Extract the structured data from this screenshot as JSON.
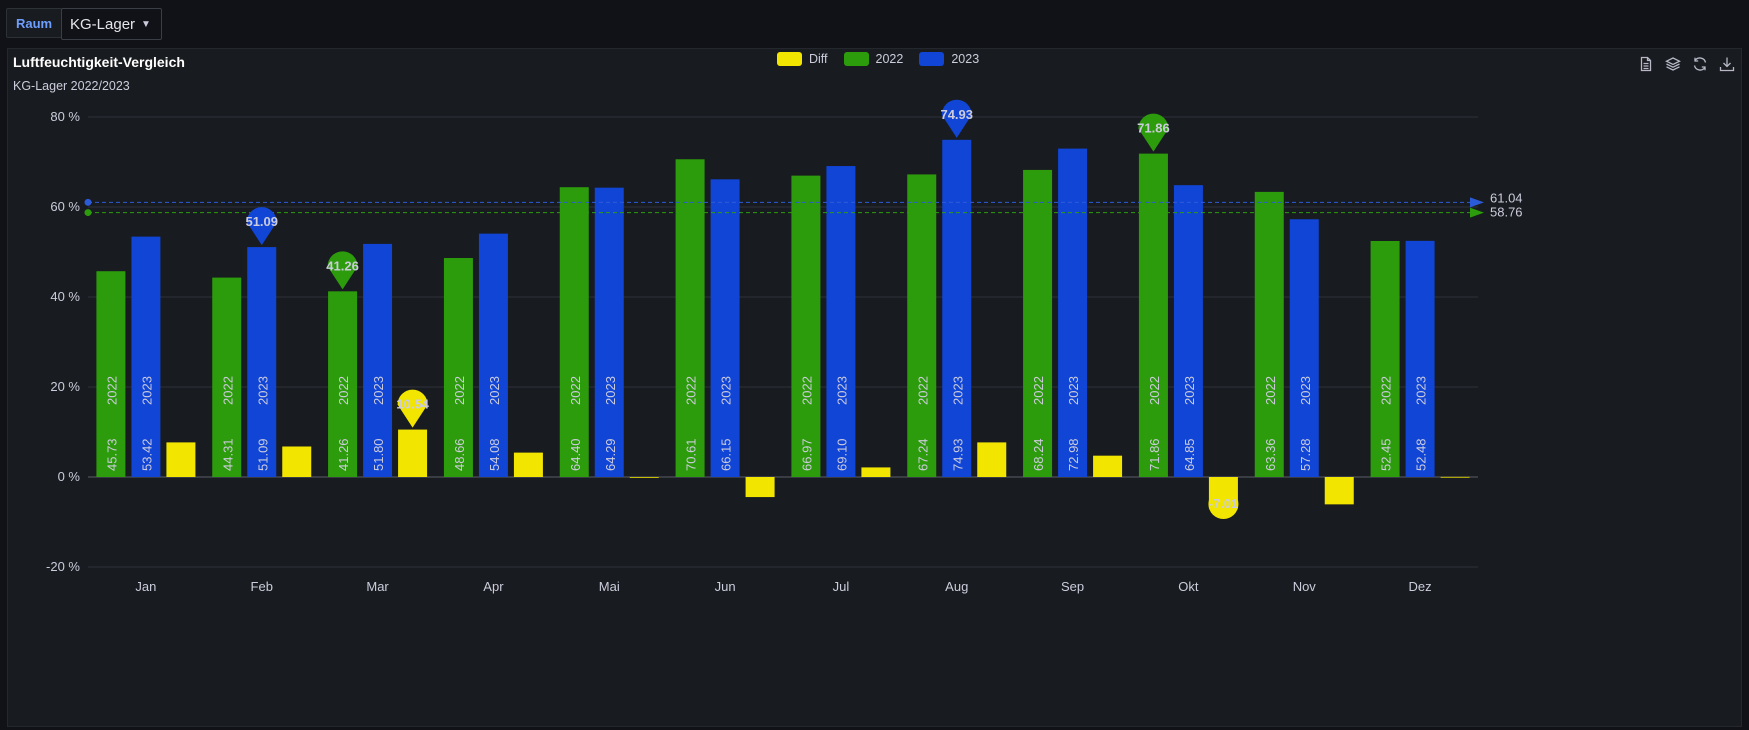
{
  "variable": {
    "label": "Raum",
    "value": "KG-Lager"
  },
  "panel": {
    "title": "Luftfeuchtigkeit-Vergleich",
    "subtitle": "KG-Lager 2022/2023"
  },
  "toolbar": {
    "icons": [
      "document-icon",
      "layers-icon",
      "refresh-icon",
      "download-icon"
    ]
  },
  "colors": {
    "diff": "#f2e600",
    "y2022": "#2d9c0c",
    "y2023": "#1145d6",
    "grid": "#2e3238",
    "text": "#ccccdc"
  },
  "chart_data": {
    "type": "bar",
    "title": "Luftfeuchtigkeit-Vergleich",
    "subtitle": "KG-Lager 2022/2023",
    "categories": [
      "Jan",
      "Feb",
      "Mar",
      "Apr",
      "Mai",
      "Jun",
      "Jul",
      "Aug",
      "Sep",
      "Okt",
      "Nov",
      "Dez"
    ],
    "series": [
      {
        "name": "2022",
        "label": "2022",
        "values": [
          45.73,
          44.31,
          41.26,
          48.66,
          64.4,
          70.61,
          66.97,
          67.24,
          68.24,
          71.86,
          63.36,
          52.45
        ],
        "value_labels": [
          "45.73",
          "44.31",
          "41.26",
          "48.66",
          "64.40",
          "70.61",
          "66.97",
          "67.24",
          "68.24",
          "71.86",
          "63.36",
          "52.45"
        ]
      },
      {
        "name": "2023",
        "label": "2023",
        "values": [
          53.42,
          51.09,
          51.8,
          54.08,
          64.29,
          66.15,
          69.1,
          74.93,
          72.98,
          64.85,
          57.28,
          52.48
        ],
        "value_labels": [
          "53.42",
          "51.09",
          "51.80",
          "54.08",
          "64.29",
          "66.15",
          "69.10",
          "74.93",
          "72.98",
          "64.85",
          "57.28",
          "52.48"
        ]
      },
      {
        "name": "Diff",
        "label": "Diff",
        "values": [
          7.69,
          6.78,
          10.54,
          5.42,
          -0.11,
          -4.46,
          2.13,
          7.69,
          4.74,
          -7.01,
          -6.08,
          0.03
        ]
      }
    ],
    "legend": [
      "Diff",
      "2022",
      "2023"
    ],
    "legend_position": "top-center",
    "ylim": [
      -20,
      80
    ],
    "yticks": [
      -20,
      0,
      20,
      40,
      60,
      80
    ],
    "ytick_labels": [
      "-20 %",
      "0 %",
      "20 %",
      "40 %",
      "60 %",
      "80 %"
    ],
    "mark_points": [
      {
        "series": "2023",
        "month": "Feb",
        "value": 51.09,
        "label": "51.09",
        "kind": "min"
      },
      {
        "series": "2022",
        "month": "Mar",
        "value": 41.26,
        "label": "41.26",
        "kind": "min"
      },
      {
        "series": "Diff",
        "month": "Mar",
        "value": 10.54,
        "label": "10.54",
        "kind": "max"
      },
      {
        "series": "2023",
        "month": "Aug",
        "value": 74.93,
        "label": "74.93",
        "kind": "max"
      },
      {
        "series": "2022",
        "month": "Okt",
        "value": 71.86,
        "label": "71.86",
        "kind": "max"
      },
      {
        "series": "Diff",
        "month": "Okt",
        "value": -7.01,
        "label": "-7.01",
        "kind": "min"
      }
    ],
    "mark_lines": [
      {
        "series": "2023",
        "value": 61.04,
        "label": "61.04",
        "kind": "average"
      },
      {
        "series": "2022",
        "value": 58.76,
        "label": "58.76",
        "kind": "average"
      }
    ]
  }
}
